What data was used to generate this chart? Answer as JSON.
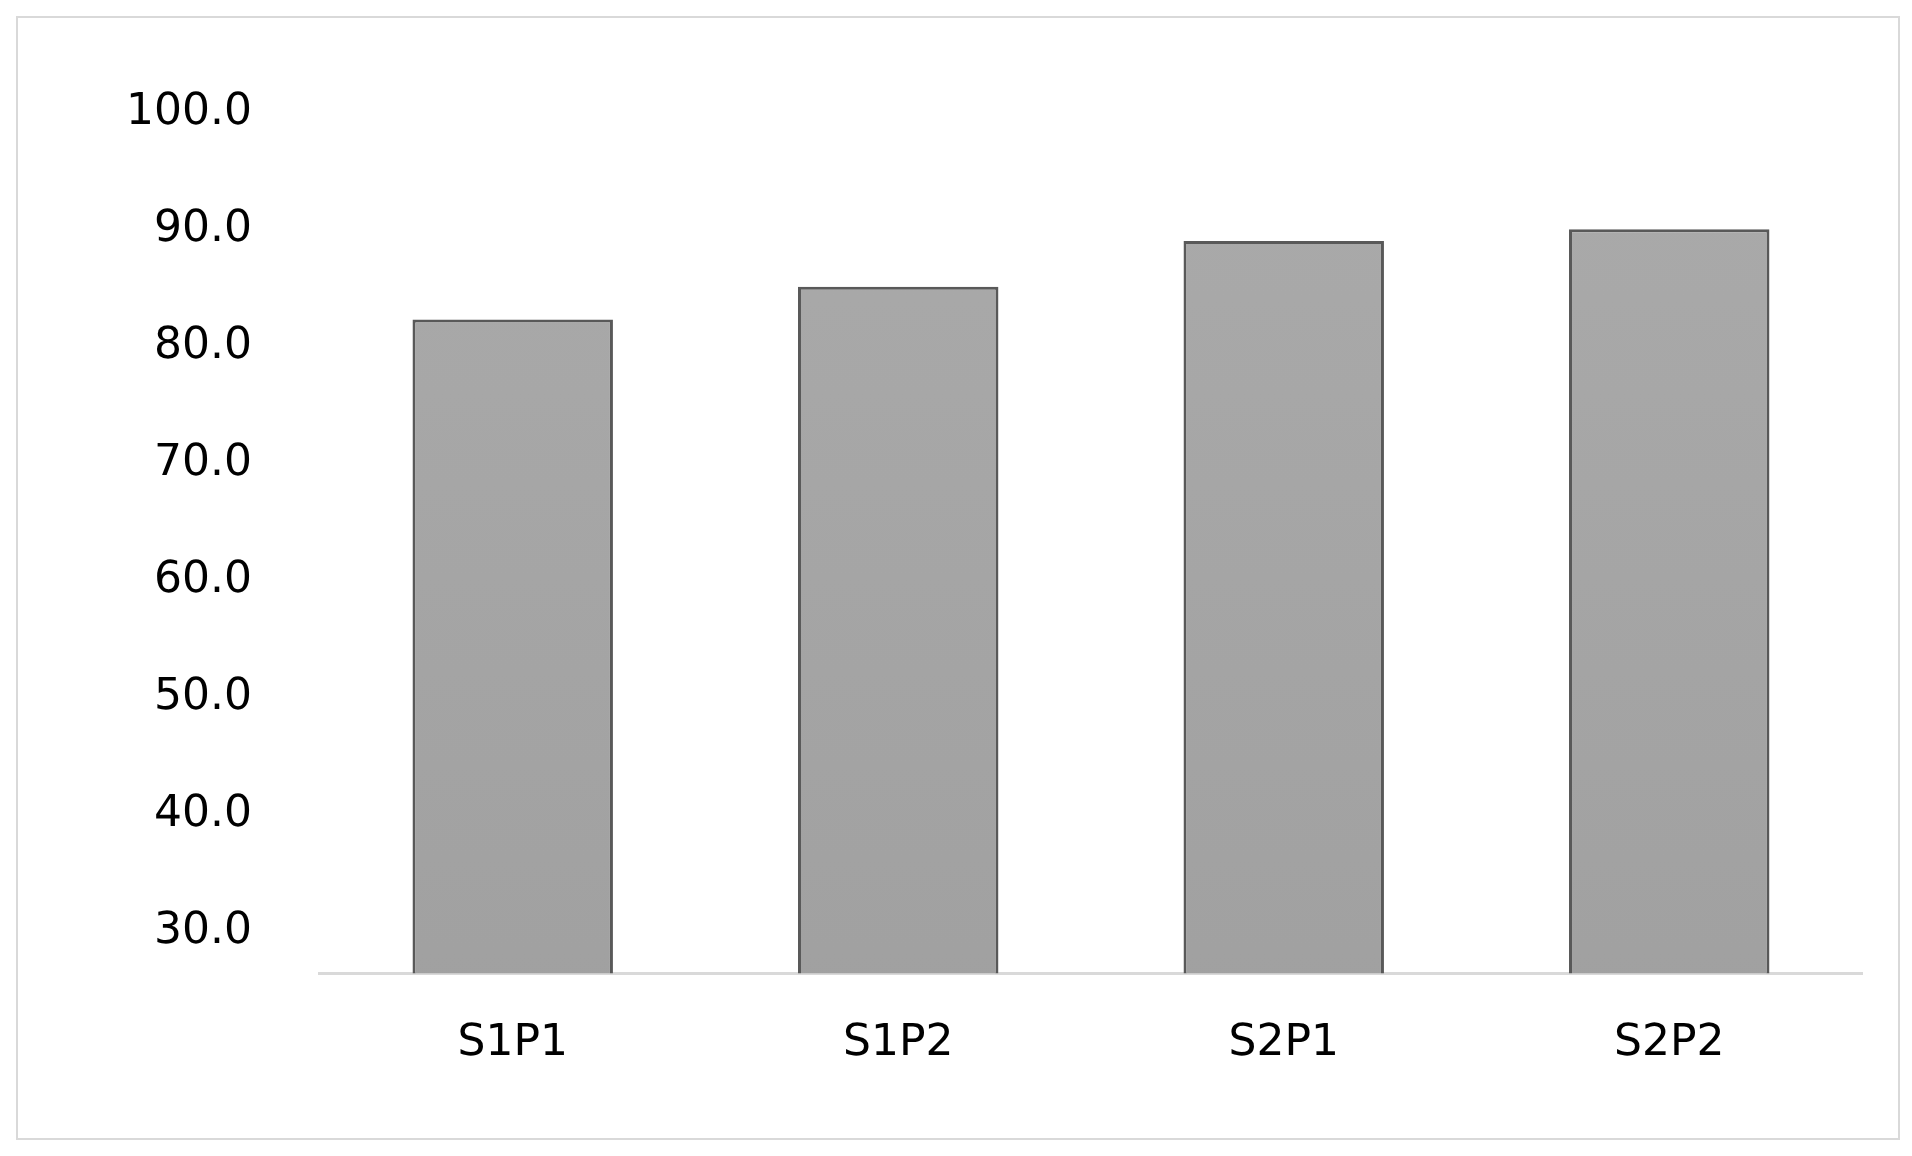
{
  "chart_data": {
    "type": "bar",
    "categories": [
      "S1P1",
      "S1P2",
      "S2P1",
      "S2P2"
    ],
    "values": [
      82.3,
      85.1,
      89.0,
      90.0
    ],
    "color": "#9f9f9f",
    "ylim": [
      26.4,
      100
    ],
    "yticks": [
      {
        "value": 30,
        "label": "30.0"
      },
      {
        "value": 40,
        "label": "40.0"
      },
      {
        "value": 50,
        "label": "50.0"
      },
      {
        "value": 60,
        "label": "60.0"
      },
      {
        "value": 70,
        "label": "70.0"
      },
      {
        "value": 80,
        "label": "80.0"
      },
      {
        "value": 90,
        "label": "90.0"
      },
      {
        "value": 100,
        "label": "100.0"
      }
    ],
    "grid": false,
    "legend": false
  }
}
